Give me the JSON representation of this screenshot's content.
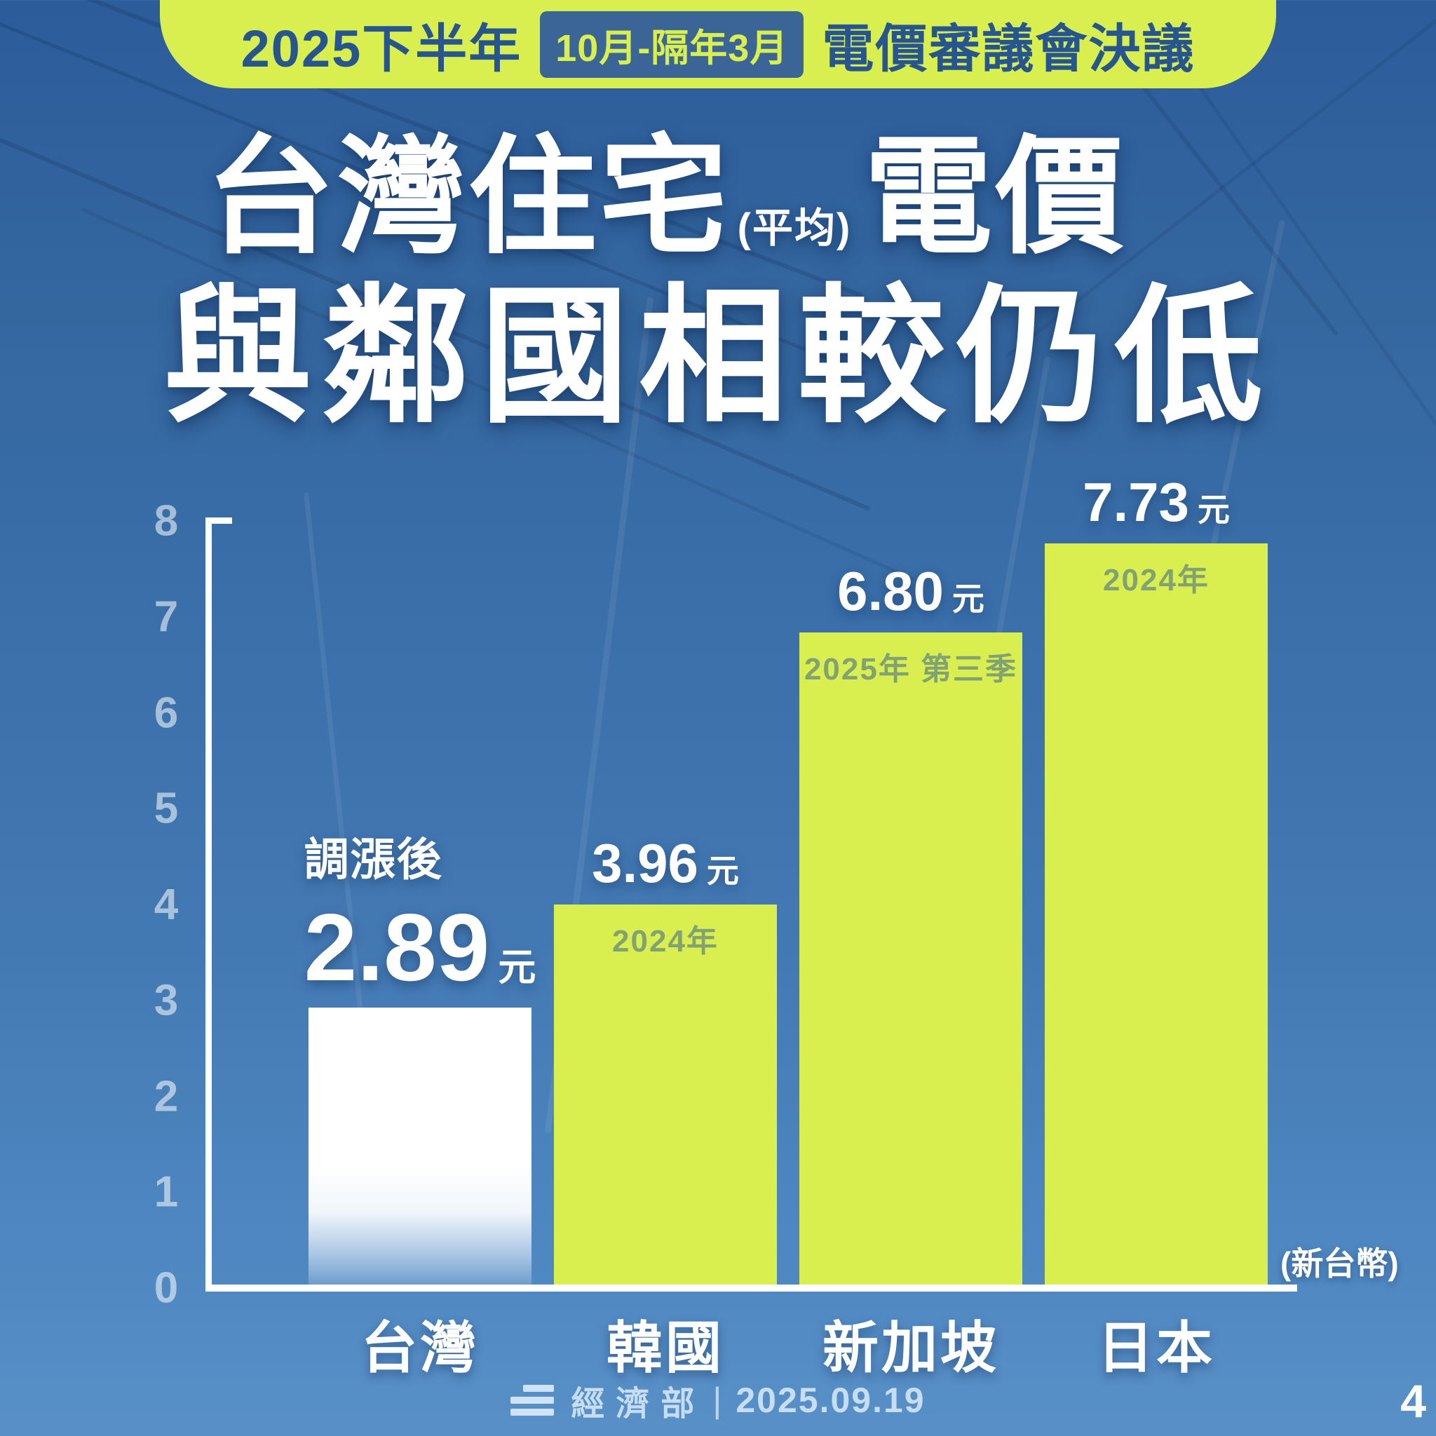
{
  "banner": {
    "part1": "2025下半年",
    "badge": "10月-隔年3月",
    "part2": "電價審議會決議"
  },
  "title": {
    "line1_main": "台灣住宅",
    "line1_sub": "(平均)",
    "line1_tail": "電價",
    "line2": "與鄰國相較仍低"
  },
  "chart_data": {
    "type": "bar",
    "categories": [
      "台灣",
      "韓國",
      "新加坡",
      "日本"
    ],
    "values": [
      2.89,
      3.96,
      6.8,
      7.73
    ],
    "value_labels": [
      "2.89",
      "3.96",
      "6.80",
      "7.73"
    ],
    "unit": "元",
    "period_labels": [
      "",
      "2024年",
      "2025年 第三季",
      "2024年"
    ],
    "annotation_taiwan": "調漲後",
    "currency_note": "(新台幣)",
    "ylabel": "",
    "xlabel": "",
    "ylim": [
      0,
      8
    ],
    "yticks": [
      0,
      1,
      2,
      3,
      4,
      5,
      6,
      7,
      8
    ],
    "grid": false,
    "legend": false,
    "bar_colors": [
      "#ffffff",
      "#d9ef4f",
      "#d9ef4f",
      "#d9ef4f"
    ],
    "background_color": "#3b70ab",
    "accent_color": "#d9ef4f"
  },
  "footer": {
    "org": "經濟部",
    "separator": "|",
    "date": "2025.09.19",
    "page": "4"
  }
}
